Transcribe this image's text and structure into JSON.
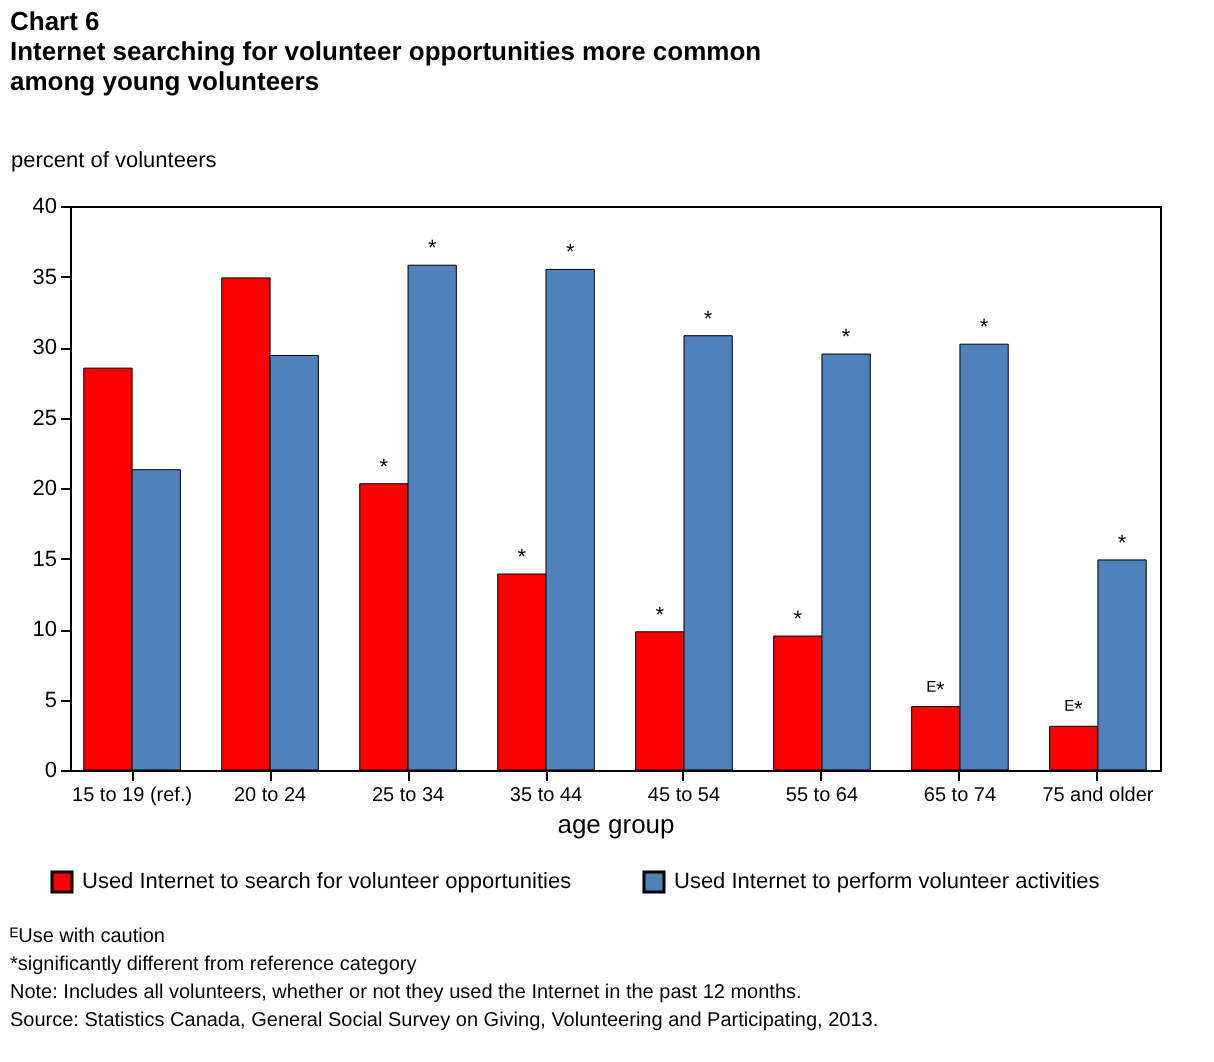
{
  "chart_data": {
    "type": "bar",
    "title": [
      "Chart 6",
      "Internet searching for volunteer opportunities more common",
      "among young volunteers"
    ],
    "ylabel": "percent of volunteers",
    "xlabel": "age group",
    "categories": [
      "15 to 19 (ref.)",
      "20 to 24",
      "25 to 34",
      "35 to 44",
      "45 to 54",
      "55 to 64",
      "65 to 74",
      "75 and older"
    ],
    "series": [
      {
        "name": "Used Internet to  search for volunteer opportunities",
        "color": "#ff0000",
        "values": [
          28.5,
          34.9,
          20.3,
          13.9,
          9.8,
          9.5,
          4.5,
          3.1
        ],
        "value_labels": [
          null,
          null,
          "*",
          "*",
          "*",
          "*",
          "ᴱ*",
          "ᴱ*"
        ]
      },
      {
        "name": "Used Internet to perform volunteer activities",
        "color": "#4f81bd",
        "values": [
          21.3,
          29.4,
          35.8,
          35.5,
          30.8,
          29.5,
          30.2,
          14.9
        ],
        "value_labels": [
          null,
          null,
          "*",
          "*",
          "*",
          "*",
          "*",
          "*"
        ]
      }
    ],
    "ylim": [
      0,
      40
    ],
    "yticks": [
      0,
      5,
      10,
      15,
      20,
      25,
      30,
      35,
      40
    ],
    "grid": false,
    "legend": "bottom",
    "annotations": [
      "ᴱUse with caution",
      "*significantly different from reference category",
      "Note: Includes all volunteers, whether or not they used the Internet in the past 12 months.",
      "Source: Statistics Canada, General Social Survey on Giving, Volunteering and Participating, 2013."
    ]
  }
}
